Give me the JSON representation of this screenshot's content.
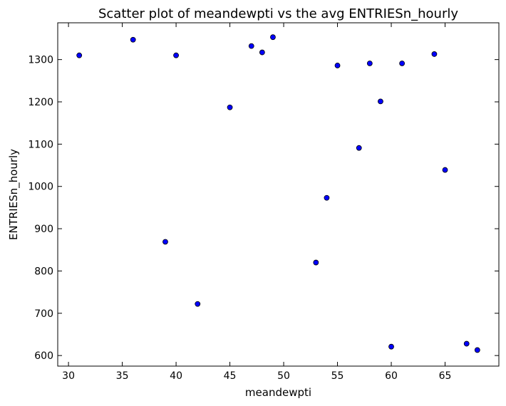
{
  "chart_data": {
    "type": "scatter",
    "title": "Scatter plot of meandewpti vs the avg ENTRIESn_hourly",
    "xlabel": "meandewpti",
    "ylabel": "ENTRIESn_hourly",
    "xlim": [
      29,
      70
    ],
    "ylim": [
      575,
      1387
    ],
    "xticks": [
      30,
      35,
      40,
      45,
      50,
      55,
      60,
      65
    ],
    "yticks": [
      600,
      700,
      800,
      900,
      1000,
      1100,
      1200,
      1300
    ],
    "grid": false,
    "marker_color": "#0000ff",
    "marker_edge_color": "#000000",
    "points": [
      {
        "x": 31,
        "y": 1310
      },
      {
        "x": 36,
        "y": 1347
      },
      {
        "x": 39,
        "y": 869
      },
      {
        "x": 40,
        "y": 1310
      },
      {
        "x": 42,
        "y": 722
      },
      {
        "x": 45,
        "y": 1187
      },
      {
        "x": 47,
        "y": 1332
      },
      {
        "x": 48,
        "y": 1317
      },
      {
        "x": 49,
        "y": 1353
      },
      {
        "x": 53,
        "y": 820
      },
      {
        "x": 54,
        "y": 973
      },
      {
        "x": 55,
        "y": 1286
      },
      {
        "x": 57,
        "y": 1091
      },
      {
        "x": 58,
        "y": 1291
      },
      {
        "x": 59,
        "y": 1201
      },
      {
        "x": 60,
        "y": 621
      },
      {
        "x": 61,
        "y": 1291
      },
      {
        "x": 64,
        "y": 1313
      },
      {
        "x": 65,
        "y": 1039
      },
      {
        "x": 67,
        "y": 628
      },
      {
        "x": 68,
        "y": 613
      }
    ]
  }
}
